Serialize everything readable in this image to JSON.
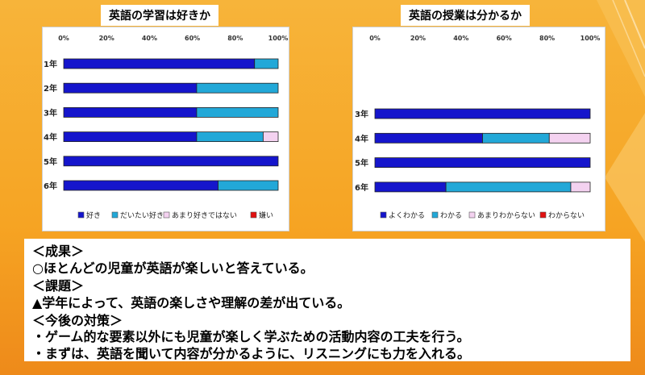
{
  "chart_data": [
    {
      "type": "bar",
      "stacked": "percent",
      "orientation": "horizontal",
      "title": "英語の学習は好きか",
      "categories": [
        "1年",
        "2年",
        "3年",
        "4年",
        "5年",
        "6年"
      ],
      "series": [
        {
          "name": "好き",
          "values": [
            89,
            62,
            62,
            62,
            100,
            72
          ]
        },
        {
          "name": "だいたい好き",
          "values": [
            11,
            38,
            38,
            31,
            0,
            28
          ]
        },
        {
          "name": "あまり好きではない",
          "values": [
            0,
            0,
            0,
            7,
            0,
            0
          ]
        },
        {
          "name": "嫌い",
          "values": [
            0,
            0,
            0,
            0,
            0,
            0
          ]
        }
      ],
      "xticks": [
        "0%",
        "20%",
        "40%",
        "60%",
        "80%",
        "100%"
      ],
      "xlim": [
        0,
        100
      ],
      "legend": "bottom"
    },
    {
      "type": "bar",
      "stacked": "percent",
      "orientation": "horizontal",
      "title": "英語の授業は分かるか",
      "categories": [
        "3年",
        "4年",
        "5年",
        "6年"
      ],
      "series": [
        {
          "name": "よくわかる",
          "values": [
            100,
            50,
            100,
            33
          ]
        },
        {
          "name": "わかる",
          "values": [
            0,
            31,
            0,
            58
          ]
        },
        {
          "name": "あまりわからない",
          "values": [
            0,
            19,
            0,
            9
          ]
        },
        {
          "name": "わからない",
          "values": [
            0,
            0,
            0,
            0
          ]
        }
      ],
      "xticks": [
        "0%",
        "20%",
        "40%",
        "60%",
        "80%",
        "100%"
      ],
      "xlim": [
        0,
        100
      ],
      "legend": "bottom"
    }
  ],
  "colors": {
    "series": [
      "#1515cc",
      "#22a8d8",
      "#f4d2f0",
      "#e21010"
    ]
  },
  "notes": {
    "result_heading": "＜成果＞",
    "result_1": "○ほとんどの児童が英語が楽しいと答えている。",
    "issue_heading": "＜課題＞",
    "issue_1": "▲学年によって、英語の楽しさや理解の差が出ている。",
    "plan_heading": "＜今後の対策＞",
    "plan_1": "・ゲーム的な要素以外にも児童が楽しく学ぶための活動内容の工夫を行う。",
    "plan_2": "・まずは、英語を聞いて内容が分かるように、リスニングにも力を入れる。"
  }
}
